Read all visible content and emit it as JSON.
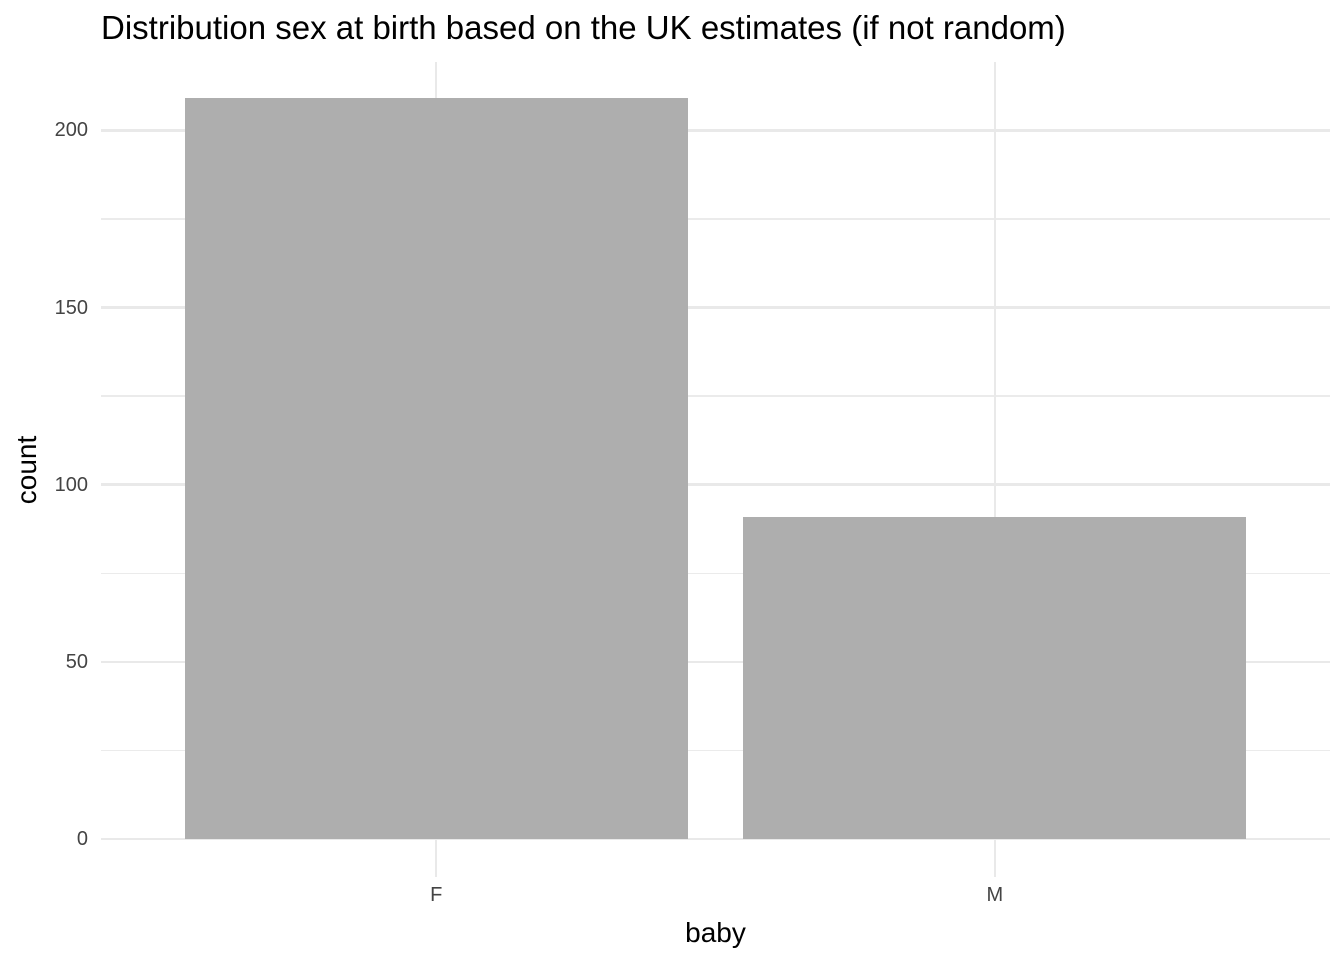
{
  "title": "Distribution sex at birth based on the UK estimates (if not random)",
  "chart_data": {
    "type": "bar",
    "title": "Distribution sex at birth based on the UK estimates (if not random)",
    "xlabel": "baby",
    "ylabel": "count",
    "categories": [
      "F",
      "M"
    ],
    "values": [
      209,
      91
    ],
    "yticks": [
      0,
      50,
      100,
      150,
      200
    ],
    "yticks_minor": [
      25,
      75,
      125,
      175
    ],
    "ylim": [
      -10.7,
      219.3
    ],
    "grid": "on",
    "legend": "none",
    "colors": {
      "bar": "#aeaeae",
      "grid_major": "#e9e9e9",
      "grid_minor": "#ebebeb",
      "tick_label": "#444444",
      "axis_title": "#000000",
      "title": "#000000",
      "background": "#ffffff"
    }
  }
}
